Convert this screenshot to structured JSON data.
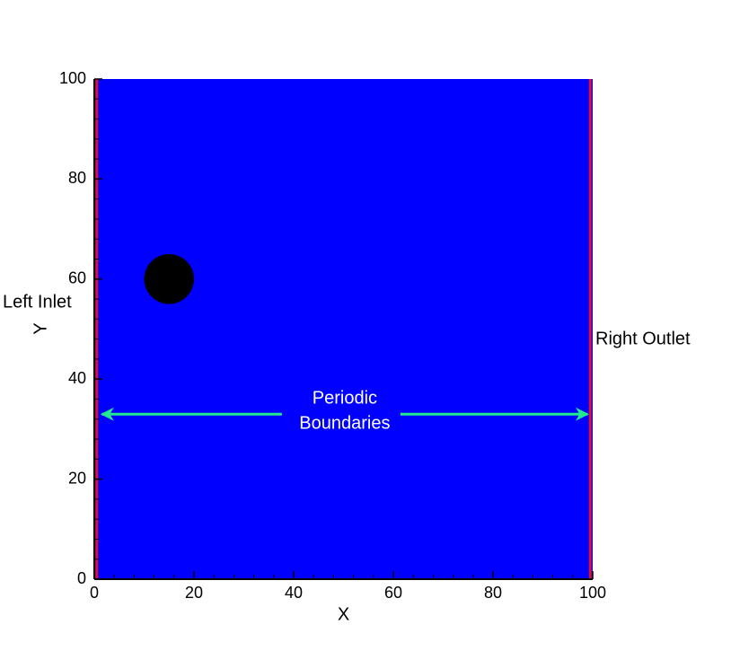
{
  "chart_data": {
    "type": "scatter",
    "xlabel": "X",
    "ylabel": "Y",
    "xlim": [
      0,
      100
    ],
    "ylim": [
      0,
      100
    ],
    "xticks": [
      0,
      20,
      40,
      60,
      80,
      100
    ],
    "yticks": [
      0,
      20,
      40,
      60,
      80,
      100
    ],
    "minor_intervals": 5,
    "background_color": "#0000ff",
    "x": [
      15
    ],
    "values": [
      60
    ],
    "diameters": [
      10
    ],
    "color": "#000000",
    "boundaries": {
      "x": [
        0.5,
        99.5
      ],
      "color": "#e0102a"
    },
    "arrow": {
      "y": 33,
      "x": [
        1.5,
        99
      ],
      "color": "#22e890",
      "label": [
        "Periodic",
        "Boundaries"
      ]
    },
    "left_label": "Left Inlet",
    "right_label": "Right Outlet"
  }
}
